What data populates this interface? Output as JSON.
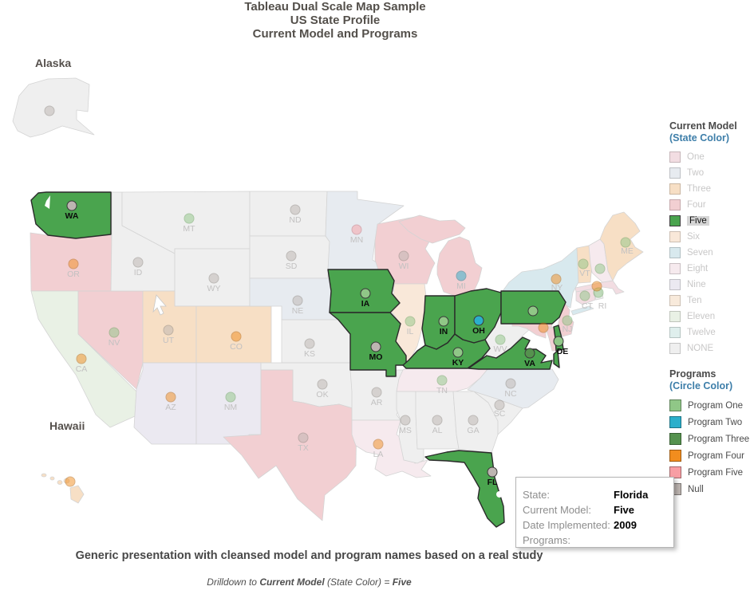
{
  "title": {
    "line1": "Tableau Dual Scale Map Sample",
    "line2": "US State Profile",
    "line3": "Current Model and Programs"
  },
  "map": {
    "alaska_label": "Alaska",
    "hawaii_label": "Hawaii",
    "states": [
      {
        "abbr": "AK",
        "label": "",
        "model": "NONE",
        "program": "Null",
        "selected": false
      },
      {
        "abbr": "HI",
        "label": "",
        "model": "Three",
        "program": "Program Four",
        "selected": false
      },
      {
        "abbr": "WA",
        "label": "WA",
        "model": "Five",
        "program": "Null",
        "selected": true
      },
      {
        "abbr": "OR",
        "label": "OR",
        "model": "Four",
        "program": "Program Four",
        "selected": false
      },
      {
        "abbr": "CA",
        "label": "CA",
        "model": "Eleven",
        "program": "Program Four",
        "selected": false
      },
      {
        "abbr": "NV",
        "label": "NV",
        "model": "Four",
        "program": "Program One",
        "selected": false
      },
      {
        "abbr": "ID",
        "label": "ID",
        "model": "NONE",
        "program": "Null",
        "selected": false
      },
      {
        "abbr": "MT",
        "label": "MT",
        "model": "NONE",
        "program": "Program One",
        "selected": false
      },
      {
        "abbr": "WY",
        "label": "WY",
        "model": "NONE",
        "program": "Null",
        "selected": false
      },
      {
        "abbr": "UT",
        "label": "UT",
        "model": "Three",
        "program": "Null",
        "selected": false
      },
      {
        "abbr": "CO",
        "label": "CO",
        "model": "Three",
        "program": "Program Four",
        "selected": false
      },
      {
        "abbr": "AZ",
        "label": "AZ",
        "model": "Nine",
        "program": "Program Four",
        "selected": false
      },
      {
        "abbr": "NM",
        "label": "NM",
        "model": "Nine",
        "program": "Program One",
        "selected": false
      },
      {
        "abbr": "ND",
        "label": "ND",
        "model": "NONE",
        "program": "Null",
        "selected": false
      },
      {
        "abbr": "SD",
        "label": "SD",
        "model": "NONE",
        "program": "Null",
        "selected": false
      },
      {
        "abbr": "NE",
        "label": "NE",
        "model": "Two",
        "program": "Null",
        "selected": false
      },
      {
        "abbr": "KS",
        "label": "KS",
        "model": "NONE",
        "program": "Null",
        "selected": false
      },
      {
        "abbr": "OK",
        "label": "OK",
        "model": "NONE",
        "program": "Null",
        "selected": false
      },
      {
        "abbr": "TX",
        "label": "TX",
        "model": "Four",
        "program": "Null",
        "selected": false
      },
      {
        "abbr": "MN",
        "label": "MN",
        "model": "Two",
        "program": "Program Five",
        "selected": false
      },
      {
        "abbr": "IA",
        "label": "IA",
        "model": "Five",
        "program": "Program One",
        "selected": true
      },
      {
        "abbr": "MO",
        "label": "MO",
        "model": "Five",
        "program": "Null",
        "selected": true
      },
      {
        "abbr": "AR",
        "label": "AR",
        "model": "NONE",
        "program": "Null",
        "selected": false
      },
      {
        "abbr": "LA",
        "label": "LA",
        "model": "Eight",
        "program": "Program Four",
        "selected": false
      },
      {
        "abbr": "WI",
        "label": "WI",
        "model": "Four",
        "program": "Null",
        "selected": false
      },
      {
        "abbr": "IL",
        "label": "IL",
        "model": "Six",
        "program": "Program One",
        "selected": false
      },
      {
        "abbr": "MI",
        "label": "MI",
        "model": "Four",
        "program": "Program Two",
        "selected": false
      },
      {
        "abbr": "IN",
        "label": "IN",
        "model": "Five",
        "program": "Program One",
        "selected": true
      },
      {
        "abbr": "OH",
        "label": "OH",
        "model": "Five",
        "program": "Program Two",
        "selected": true
      },
      {
        "abbr": "KY",
        "label": "KY",
        "model": "Five",
        "program": "Program One",
        "selected": true
      },
      {
        "abbr": "TN",
        "label": "TN",
        "model": "Eight",
        "program": "Program One",
        "selected": false
      },
      {
        "abbr": "MS",
        "label": "MS",
        "model": "NONE",
        "program": "Null",
        "selected": false
      },
      {
        "abbr": "AL",
        "label": "AL",
        "model": "NONE",
        "program": "Null",
        "selected": false
      },
      {
        "abbr": "GA",
        "label": "GA",
        "model": "NONE",
        "program": "Null",
        "selected": false
      },
      {
        "abbr": "FL",
        "label": "FL",
        "model": "Five",
        "program": "Null",
        "selected": true
      },
      {
        "abbr": "SC",
        "label": "SC",
        "model": "NONE",
        "program": "Null",
        "selected": false
      },
      {
        "abbr": "NC",
        "label": "NC",
        "model": "Two",
        "program": "Null",
        "selected": false
      },
      {
        "abbr": "VA",
        "label": "VA",
        "model": "Five",
        "program": "Program Three",
        "selected": true
      },
      {
        "abbr": "WV",
        "label": "WV",
        "model": "NONE",
        "program": "Program One",
        "selected": false
      },
      {
        "abbr": "PA",
        "label": "",
        "model": "Five",
        "program": "Program One",
        "selected": true
      },
      {
        "abbr": "NY",
        "label": "NY",
        "model": "Seven",
        "program": "Program Four",
        "selected": false
      },
      {
        "abbr": "NJ",
        "label": "NJ",
        "model": "Four",
        "program": "Program One",
        "selected": false
      },
      {
        "abbr": "MD",
        "label": "",
        "model": "Four",
        "program": "Program Four",
        "selected": false
      },
      {
        "abbr": "DE",
        "label": "DE",
        "model": "Five",
        "program": "Program One",
        "selected": true
      },
      {
        "abbr": "CT",
        "label": "CT",
        "model": "One",
        "program": "Program One",
        "selected": false
      },
      {
        "abbr": "RI",
        "label": "RI",
        "model": "NONE",
        "program": "Program One",
        "selected": false
      },
      {
        "abbr": "MA",
        "label": "",
        "model": "One",
        "program": "Program Four",
        "selected": false
      },
      {
        "abbr": "VT",
        "label": "VT",
        "model": "Three",
        "program": "Program One",
        "selected": false
      },
      {
        "abbr": "NH",
        "label": "",
        "model": "Eight",
        "program": "Program One",
        "selected": false
      },
      {
        "abbr": "ME",
        "label": "ME",
        "model": "Three",
        "program": "Program One",
        "selected": false
      }
    ]
  },
  "legend_model": {
    "title": "Current Model",
    "subtitle": "(State Color)",
    "selected": "Five",
    "items": [
      {
        "label": "One",
        "color": "#F2DDE2"
      },
      {
        "label": "Two",
        "color": "#E7EBF0"
      },
      {
        "label": "Three",
        "color": "#F7DFC5"
      },
      {
        "label": "Four",
        "color": "#F2CFD2"
      },
      {
        "label": "Five",
        "color": "#4AA44E"
      },
      {
        "label": "Six",
        "color": "#F9E8D9"
      },
      {
        "label": "Seven",
        "color": "#D8E9EE"
      },
      {
        "label": "Eight",
        "color": "#F6EAEE"
      },
      {
        "label": "Nine",
        "color": "#EBE9F1"
      },
      {
        "label": "Ten",
        "color": "#F8EADB"
      },
      {
        "label": "Eleven",
        "color": "#E9F1E5"
      },
      {
        "label": "Twelve",
        "color": "#DFEFED"
      },
      {
        "label": "NONE",
        "color": "#EFEFEF"
      }
    ]
  },
  "legend_programs": {
    "title": "Programs",
    "subtitle": "(Circle Color)",
    "items": [
      {
        "label": "Program One",
        "color": "#90C787"
      },
      {
        "label": "Program Two",
        "color": "#2BAFCB"
      },
      {
        "label": "Program Three",
        "color": "#55924E"
      },
      {
        "label": "Program Four",
        "color": "#F28D1E"
      },
      {
        "label": "Program Five",
        "color": "#F89EA4"
      },
      {
        "label": "Null",
        "color": "#BDB5B1"
      }
    ]
  },
  "tooltip": {
    "rows": [
      {
        "label": "State:",
        "value": "Florida"
      },
      {
        "label": "Current Model:",
        "value": "Five"
      },
      {
        "label": "Date Implemented:",
        "value": "2009"
      },
      {
        "label": "Programs:",
        "value": ""
      }
    ]
  },
  "captions": {
    "main": "Generic presentation with cleansed model and program names based on a real study",
    "drill_prefix": "Drilldown to ",
    "drill_bold1": "Current Model",
    "drill_middle": " (State Color) = ",
    "drill_bold2": "Five"
  },
  "colors": {
    "subtitle_blue": "#3D7EA9",
    "title_gray": "#54504B",
    "selected_green": "#4AA44E",
    "model": {
      "One": "#F2DDE2",
      "Two": "#E7EBF0",
      "Three": "#F7DFC5",
      "Four": "#F2CFD2",
      "Five": "#4AA44E",
      "Six": "#F9E8D9",
      "Seven": "#D8E9EE",
      "Eight": "#F6EAEE",
      "Nine": "#EBE9F1",
      "Ten": "#F8EADB",
      "Eleven": "#E9F1E5",
      "Twelve": "#DFEFED",
      "NONE": "#EFEFEF"
    },
    "program": {
      "Program One": "#90C787",
      "Program Two": "#2BAFCB",
      "Program Three": "#55924E",
      "Program Four": "#F28D1E",
      "Program Five": "#F89EA4",
      "Null": "#BDB5B1"
    },
    "program_border": {
      "Program One": "#69A05E",
      "Program Two": "#1B7F94",
      "Program Three": "#30602C",
      "Program Four": "#B5640D",
      "Program Five": "#C4737B",
      "Null": "#8C8680"
    }
  }
}
